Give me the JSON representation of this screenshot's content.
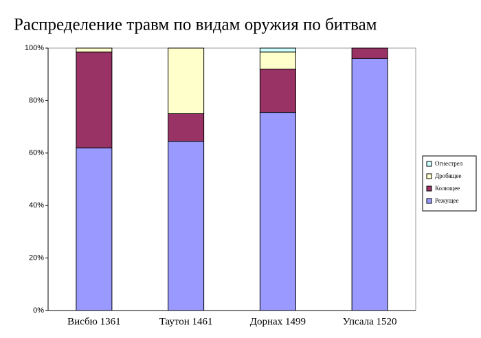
{
  "chart_data": {
    "type": "stacked-bar",
    "title": "Распределение травм по видам оружия по битвам",
    "categories": [
      "Висбю 1361",
      "Таутон 1461",
      "Дорнах 1499",
      "Упсала 1520"
    ],
    "series": [
      {
        "name": "Режущее",
        "color": "#9999ff",
        "values": [
          62,
          64.5,
          75.5,
          96
        ]
      },
      {
        "name": "Колющее",
        "color": "#993366",
        "values": [
          36.5,
          10.5,
          16.5,
          4
        ]
      },
      {
        "name": "Дробящее",
        "color": "#ffffcc",
        "values": [
          1.5,
          25,
          6.5,
          0
        ]
      },
      {
        "name": "Огнестрел",
        "color": "#ccffff",
        "values": [
          0,
          0,
          1.5,
          0
        ]
      }
    ],
    "ylim": [
      0,
      100
    ],
    "yticks": [
      {
        "value": 0,
        "label": "0%"
      },
      {
        "value": 20,
        "label": "20%"
      },
      {
        "value": 40,
        "label": "40%"
      },
      {
        "value": 60,
        "label": "60%"
      },
      {
        "value": 80,
        "label": "80%"
      },
      {
        "value": 100,
        "label": "100%"
      }
    ],
    "legend": "right"
  }
}
